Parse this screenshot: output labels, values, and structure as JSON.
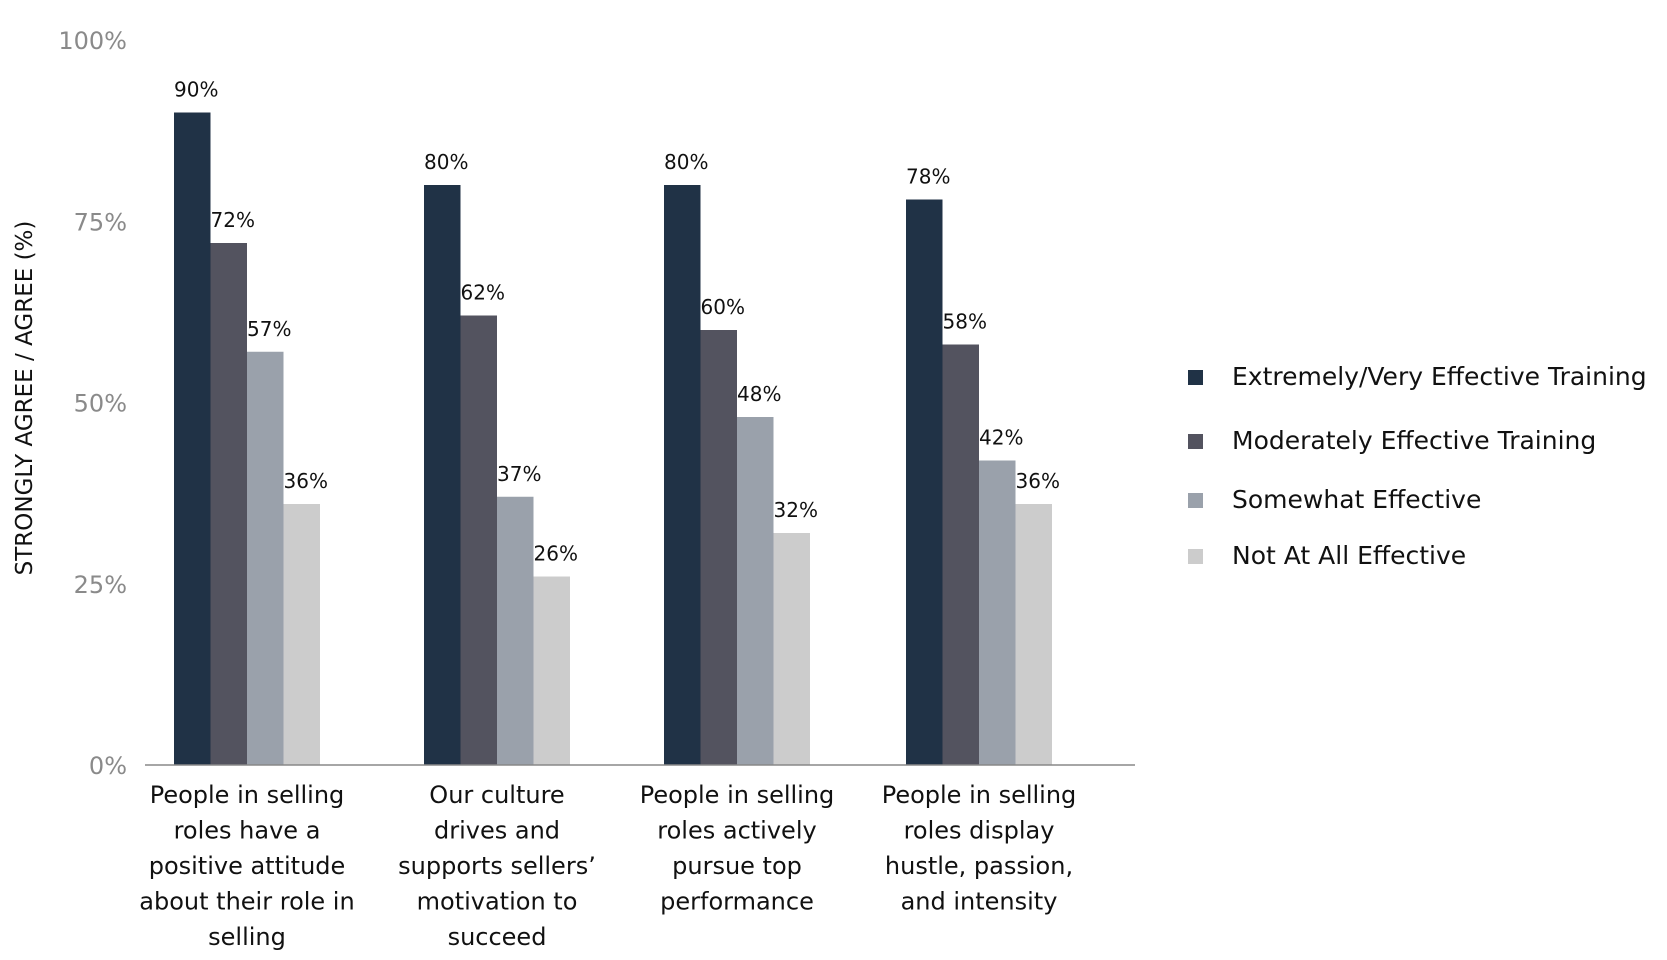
{
  "chart_data": {
    "type": "bar",
    "ylabel": "STRONGLY AGREE / AGREE (%)",
    "xlabel": "",
    "ylim": [
      0,
      100
    ],
    "yticks": [
      0,
      25,
      50,
      75,
      100
    ],
    "ytick_labels": [
      "0%",
      "25%",
      "50%",
      "75%",
      "100%"
    ],
    "grid": false,
    "legend_position": "right",
    "categories": [
      [
        "People in selling",
        "roles have a",
        "positive attitude",
        "about their role in",
        "selling"
      ],
      [
        "Our culture",
        "drives and",
        "supports sellers’",
        "motivation to",
        "succeed"
      ],
      [
        "People in selling",
        "roles actively",
        "pursue top",
        "performance"
      ],
      [
        "People in selling",
        "roles display",
        "hustle, passion,",
        "and intensity"
      ]
    ],
    "series": [
      {
        "name": "Extremely/Very Effective Training",
        "color": "#203246",
        "values": [
          90,
          80,
          80,
          78
        ],
        "labels": [
          "90%",
          "80%",
          "80%",
          "78%"
        ]
      },
      {
        "name": "Moderately Effective Training",
        "color": "#53535f",
        "values": [
          72,
          62,
          60,
          58
        ],
        "labels": [
          "72%",
          "62%",
          "60%",
          "58%"
        ]
      },
      {
        "name": "Somewhat Effective",
        "color": "#9aa1ab",
        "values": [
          57,
          37,
          48,
          42
        ],
        "labels": [
          "57%",
          "37%",
          "48%",
          "42%"
        ]
      },
      {
        "name": "Not At All Effective",
        "color": "#cccccc",
        "values": [
          36,
          26,
          32,
          36
        ],
        "labels": [
          "36%",
          "26%",
          "32%",
          "36%"
        ]
      }
    ]
  }
}
